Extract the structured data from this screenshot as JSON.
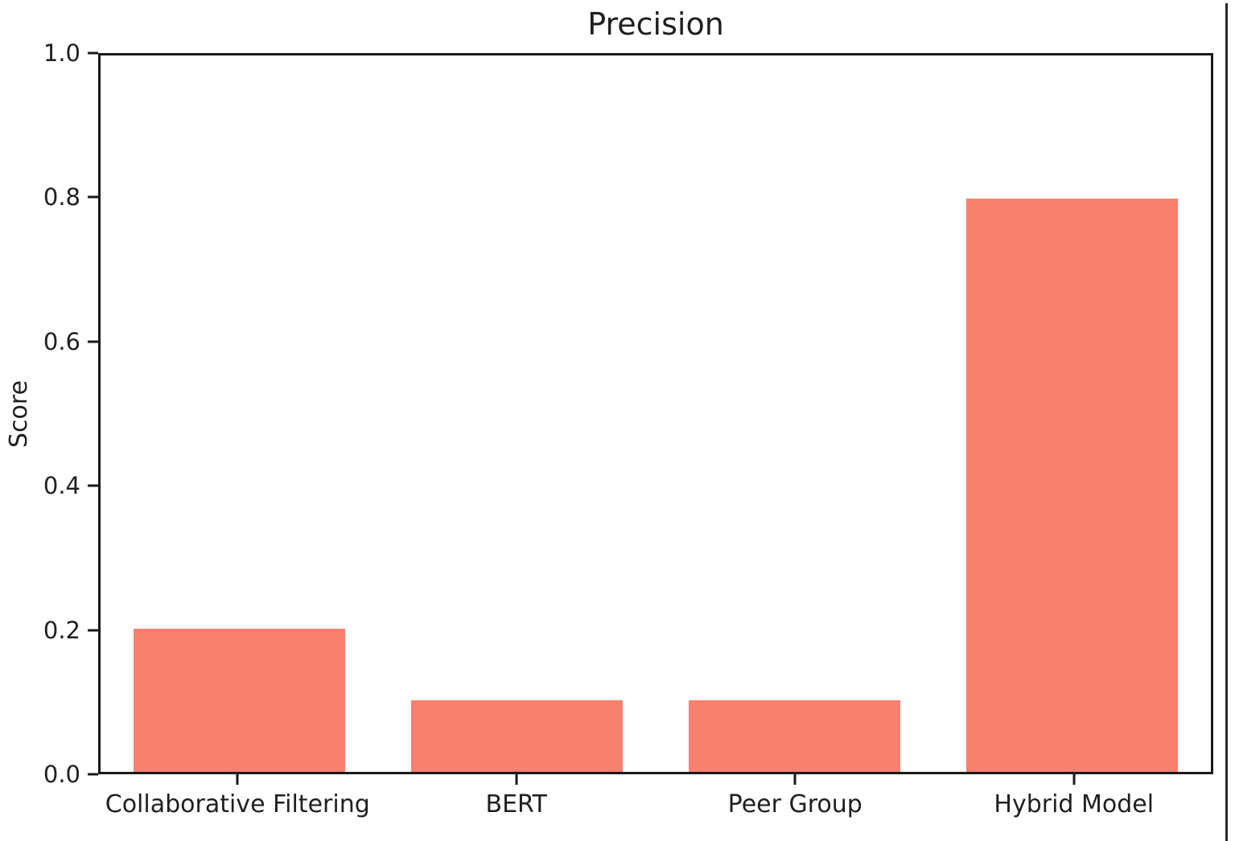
{
  "chart_data": {
    "type": "bar",
    "title": "Precision",
    "xlabel": "",
    "ylabel": "Score",
    "categories": [
      "Collaborative Filtering",
      "BERT",
      "Peer Group",
      "Hybrid Model"
    ],
    "values": [
      0.2,
      0.1,
      0.1,
      0.8
    ],
    "ylim": [
      0.0,
      1.0
    ],
    "yticks": [
      "0.0",
      "0.2",
      "0.4",
      "0.6",
      "0.8",
      "1.0"
    ],
    "grid": false,
    "legend": null,
    "colors": {
      "bar": "#F8806F",
      "spine": "#1a1a1a",
      "text": "#1f1f1f",
      "background": "#ffffff",
      "right_edge_line": "#2a2a2a"
    }
  }
}
